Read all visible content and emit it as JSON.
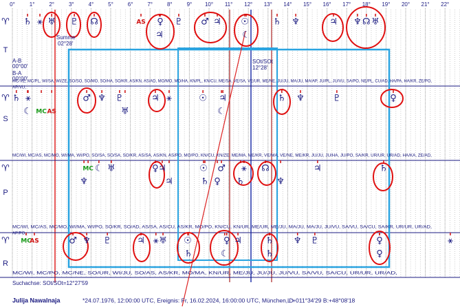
{
  "degree_labels": [
    "0°",
    "1°",
    "2°",
    "3°",
    "4°",
    "5°",
    "6°",
    "7°",
    "8°",
    "9°",
    "10°",
    "11°",
    "12°",
    "13°",
    "14°",
    "15°",
    "16°",
    "17°",
    "18°",
    "19°",
    "20°",
    "21°",
    "22°"
  ],
  "notes": {
    "summe": "Summe",
    "summe_value": "02°28'",
    "ab": "A-B",
    "ab_value": "00°00'",
    "ba": "B-A",
    "ba_value": "00°00'",
    "axis": "SOt/SOt",
    "axis_value": "12°28'"
  },
  "bands": [
    {
      "label": "T",
      "aries": "♈",
      "glyphs": [
        {
          "symbol": "♄",
          "deg": 0.77,
          "row": 0
        },
        {
          "symbol": "⚹",
          "deg": 1.4,
          "row": 0
        },
        {
          "symbol": "♅",
          "deg": 2.0,
          "row": 0
        },
        {
          "symbol": "♇",
          "deg": 3.15,
          "row": 0
        },
        {
          "symbol": "☊",
          "deg": 4.16,
          "row": 0
        },
        {
          "symbol": "AS",
          "deg": 6.54,
          "row": 0
        },
        {
          "symbol": "♀",
          "deg": 7.52,
          "row": 0
        },
        {
          "symbol": "♇",
          "deg": 8.46,
          "row": 0
        },
        {
          "symbol": "♂",
          "deg": 9.79,
          "row": 0
        },
        {
          "symbol": "♃",
          "deg": 10.42,
          "row": 0
        },
        {
          "symbol": "☉",
          "deg": 11.82,
          "row": 0
        },
        {
          "symbol": "♄",
          "deg": 13.46,
          "row": 0
        },
        {
          "symbol": "♆",
          "deg": 14.41,
          "row": 0
        },
        {
          "symbol": "♃",
          "deg": 16.33,
          "row": 0
        },
        {
          "symbol": "♆",
          "deg": 17.55,
          "row": 0
        },
        {
          "symbol": "☊",
          "deg": 18.0,
          "row": 0
        },
        {
          "symbol": "♅",
          "deg": 18.46,
          "row": 0
        },
        {
          "symbol": "♃",
          "deg": 7.48,
          "row": 1
        },
        {
          "symbol": "☾",
          "deg": 11.89,
          "row": 1
        }
      ]
    },
    {
      "label": "S",
      "aries": "♈",
      "header": [
        "MC/VE, MC/PL, WI/SA, WI/ZE, SO/SO, SO/MO, SO/HA, SO/KR, AS/KN, AS/AD, MO/MO, MO/HA, KN/PL, KN/CU, ME/SA, VE/SA, VE/UR, ME/NE, JU/JU, MA/JU, MA/AP, JU/PL, JU/VU, SA/PO, NE/PL, CU/AD, HA/PA, HA/KR, ZE/PO,",
        "AP/VU,"
      ],
      "glyphs": [
        {
          "symbol": "♄",
          "deg": 0.2,
          "row": 0
        },
        {
          "symbol": "⚹",
          "deg": 0.8,
          "row": 0
        },
        {
          "symbol": "♂",
          "deg": 3.78,
          "row": 0
        },
        {
          "symbol": "♆",
          "deg": 4.55,
          "row": 0
        },
        {
          "symbol": "♇",
          "deg": 5.45,
          "row": 0
        },
        {
          "symbol": "♃",
          "deg": 7.27,
          "row": 0
        },
        {
          "symbol": "⚹",
          "deg": 7.97,
          "row": 0
        },
        {
          "symbol": "☉",
          "deg": 9.69,
          "row": 0
        },
        {
          "symbol": "♃",
          "deg": 10.7,
          "row": 0
        },
        {
          "symbol": "♄",
          "deg": 13.7,
          "row": 0
        },
        {
          "symbol": "♆",
          "deg": 14.65,
          "row": 0
        },
        {
          "symbol": "♇",
          "deg": 16.5,
          "row": 0
        },
        {
          "symbol": "♀",
          "deg": 19.37,
          "row": 0
        },
        {
          "symbol": "☾",
          "deg": 0.77,
          "row": 1
        },
        {
          "symbol": "MC",
          "deg": 1.47,
          "row": 1
        },
        {
          "symbol": "AS",
          "deg": 2.0,
          "row": 1
        },
        {
          "symbol": "♅",
          "deg": 5.73,
          "row": 1
        },
        {
          "symbol": "☾",
          "deg": 10.63,
          "row": 1
        }
      ]
    },
    {
      "label": "P",
      "aries": "♈",
      "header": [
        "MC/WI, MC/AS, MC/MO, WI/MA, WI/PO, SO/SA, SO/SA, SO/KR, AS/SA, AS/KN, AS/PO, MO/PO, KN/CU, KN/ZE, ME/MA, ME/KR, VE/MA, VE/NE, ME/KR, JU/JU, JU/HA, JU/PO, SA/KR, UR/UR, UR/AD, HA/KA, ZE/AD,"
      ],
      "glyphs": [
        {
          "symbol": "MC",
          "deg": 3.85,
          "row": 0
        },
        {
          "symbol": "☾",
          "deg": 4.4,
          "row": 0
        },
        {
          "symbol": "♅",
          "deg": 5.03,
          "row": 0
        },
        {
          "symbol": "♀",
          "deg": 7.27,
          "row": 0
        },
        {
          "symbol": "♃",
          "deg": 7.62,
          "row": 0
        },
        {
          "symbol": "☉",
          "deg": 9.72,
          "row": 0
        },
        {
          "symbol": "♂",
          "deg": 10.63,
          "row": 0
        },
        {
          "symbol": "⚹",
          "deg": 11.78,
          "row": 0
        },
        {
          "symbol": "☊",
          "deg": 12.87,
          "row": 0
        },
        {
          "symbol": "♃",
          "deg": 15.52,
          "row": 0
        },
        {
          "symbol": "♄",
          "deg": 18.88,
          "row": 0
        },
        {
          "symbol": "♆",
          "deg": 3.64,
          "row": 1
        },
        {
          "symbol": "♃",
          "deg": 7.97,
          "row": 1
        },
        {
          "symbol": "♄",
          "deg": 9.79,
          "row": 1
        },
        {
          "symbol": "♀",
          "deg": 10.42,
          "row": 1
        },
        {
          "symbol": "♄",
          "deg": 11.6,
          "row": 1
        },
        {
          "symbol": "♆",
          "deg": 13.64,
          "row": 1
        }
      ]
    },
    {
      "label": "R",
      "aries": "♈",
      "header": [
        "MC/WI, MC/AS, MC/MO, WI/MA, WI/PO, SO/KR, SO/AD, AS/SA, AS/CU, AS/KR, MO/PO, KN/CU, KN/UR, ME/UR, ME/JU, MA/JU, MA/JU, JU/VU, SA/VU, SA/CU, SA/KR, UR/UR, UR/AD,",
        "AP/PO,"
      ],
      "footer_header": "MC/WI, MC/PO, MC/NE, SO/UR, WI/JU, SO/AS, AS/KR, MO/MA, KN/UR, ME/JU, JU/JU, JU/VU, SA/VU, SA/CU, UR/UR, UR/AD,",
      "glyphs": [
        {
          "symbol": "MC",
          "deg": 0.7,
          "row": 0
        },
        {
          "symbol": "AS",
          "deg": 1.12,
          "row": 0
        },
        {
          "symbol": "♂",
          "deg": 3.08,
          "row": 0
        },
        {
          "symbol": "♆",
          "deg": 3.78,
          "row": 0
        },
        {
          "symbol": "♇",
          "deg": 4.83,
          "row": 0
        },
        {
          "symbol": "♃",
          "deg": 6.54,
          "row": 0
        },
        {
          "symbol": "⚹",
          "deg": 7.3,
          "row": 0
        },
        {
          "symbol": "♅",
          "deg": 7.66,
          "row": 0
        },
        {
          "symbol": "☉",
          "deg": 8.92,
          "row": 0
        },
        {
          "symbol": "♀",
          "deg": 10.9,
          "row": 0
        },
        {
          "symbol": "♃",
          "deg": 11.47,
          "row": 0
        },
        {
          "symbol": "♄",
          "deg": 13.08,
          "row": 0
        },
        {
          "symbol": "♆",
          "deg": 14.5,
          "row": 0
        },
        {
          "symbol": "♇",
          "deg": 15.38,
          "row": 0
        },
        {
          "symbol": "♀",
          "deg": 18.67,
          "row": 0
        },
        {
          "symbol": "⚹",
          "deg": 22.27,
          "row": 0
        },
        {
          "symbol": "♄",
          "deg": 8.95,
          "row": 1
        },
        {
          "symbol": "☾",
          "deg": 10.8,
          "row": 1
        },
        {
          "symbol": "♄",
          "deg": 13.08,
          "row": 1
        },
        {
          "symbol": "♀",
          "deg": 18.67,
          "row": 1
        }
      ]
    }
  ],
  "search_axis": "Suchachse: SOt/SOt=12°27'59",
  "footer": {
    "name": "Julija Nawalnaja",
    "details": "*24.07.1976, 12:00:00 UTC, Ereignis: Fr, 16.02.2024, 16:00:00 UTC, München, D",
    "coords": "L:+011°34'29 B:+48°08'18"
  }
}
